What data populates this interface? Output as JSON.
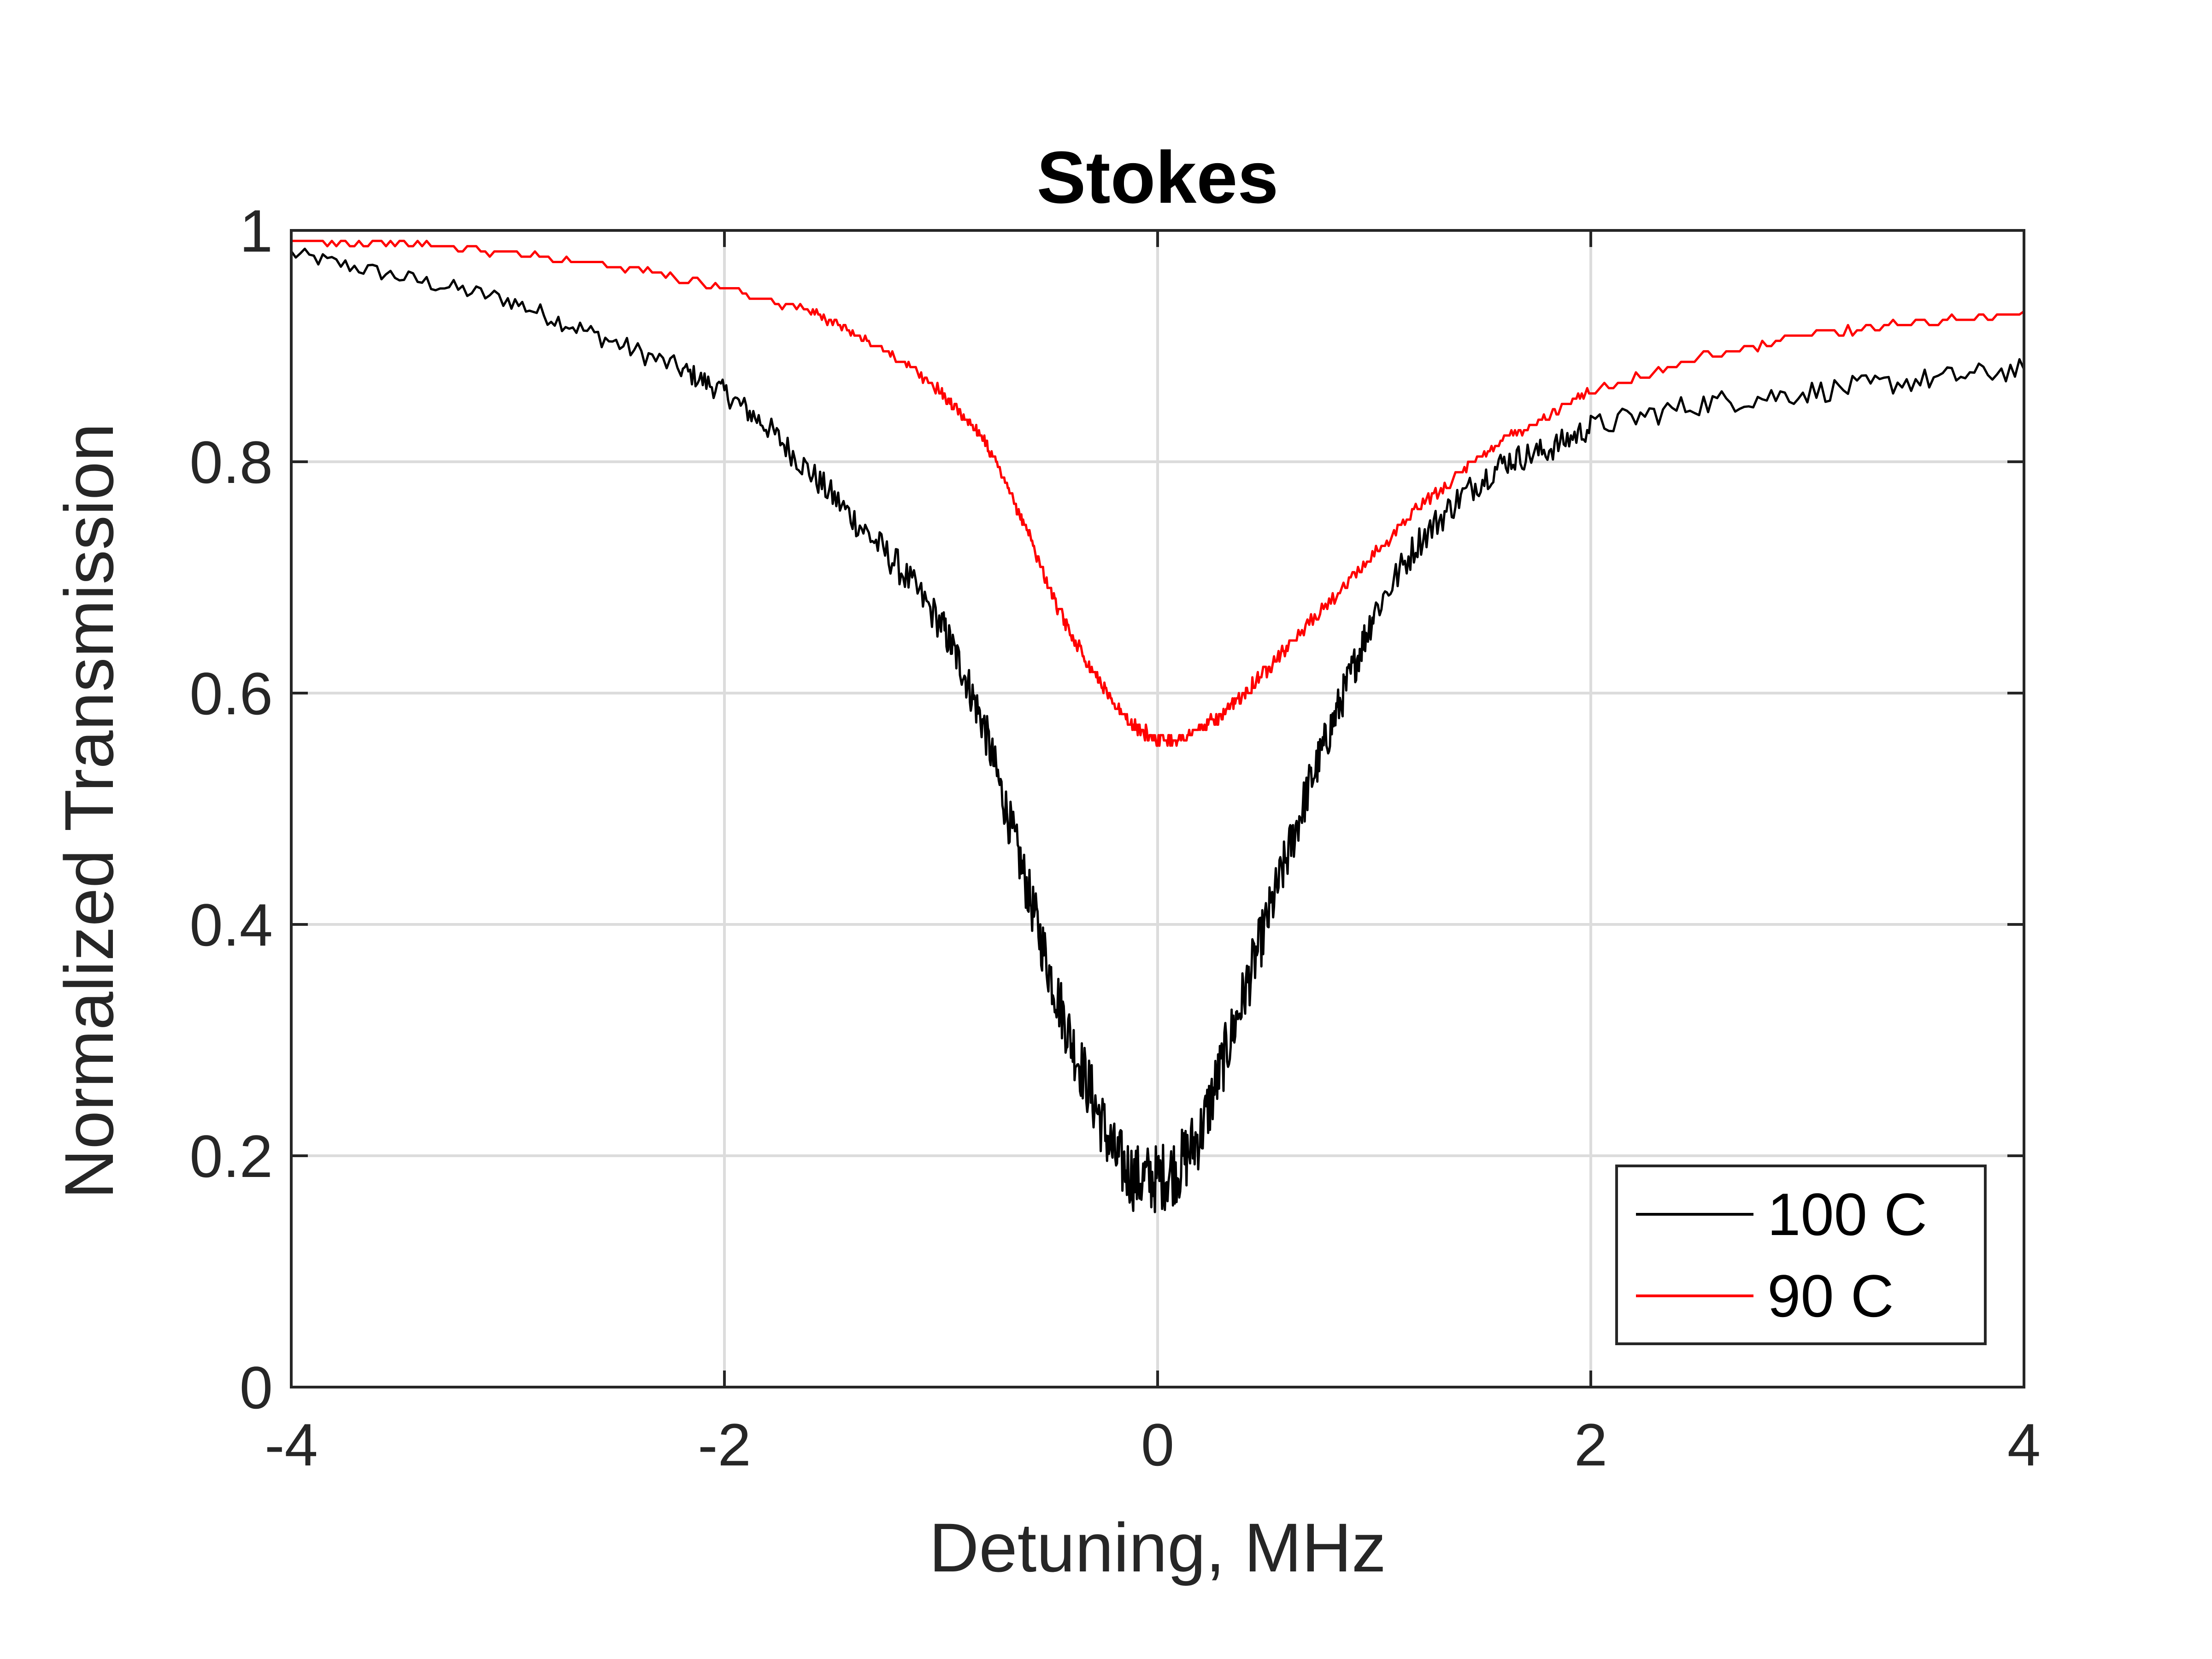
{
  "chart_data": {
    "type": "line",
    "title": "Stokes",
    "xlabel": "Detuning, MHz",
    "ylabel": "Normalized Transmission",
    "xlim": [
      -4,
      4
    ],
    "ylim": [
      0,
      1
    ],
    "xticks": [
      -4,
      -2,
      0,
      2,
      4
    ],
    "xtick_labels": [
      "-4",
      "-2",
      "0",
      "2",
      "4"
    ],
    "yticks": [
      0,
      0.2,
      0.4,
      0.6,
      0.8,
      1
    ],
    "ytick_labels": [
      "0",
      "0.2",
      "0.4",
      "0.6",
      "0.8",
      "1"
    ],
    "grid": true,
    "legend_position": "bottom-right",
    "series": [
      {
        "name": "100 C",
        "color": "#000000",
        "x": [
          -4.0,
          -3.5,
          -3.0,
          -2.6,
          -2.2,
          -2.0,
          -1.8,
          -1.6,
          -1.4,
          -1.2,
          -1.0,
          -0.9,
          -0.8,
          -0.7,
          -0.6,
          -0.5,
          -0.4,
          -0.3,
          -0.2,
          -0.1,
          0.0,
          0.1,
          0.2,
          0.3,
          0.4,
          0.5,
          0.6,
          0.7,
          0.8,
          0.9,
          1.0,
          1.2,
          1.4,
          1.6,
          1.8,
          2.0,
          2.5,
          3.0,
          3.5,
          4.0
        ],
        "y": [
          0.98,
          0.96,
          0.94,
          0.91,
          0.88,
          0.86,
          0.83,
          0.79,
          0.75,
          0.71,
          0.66,
          0.62,
          0.57,
          0.5,
          0.43,
          0.36,
          0.3,
          0.25,
          0.2,
          0.18,
          0.18,
          0.19,
          0.22,
          0.28,
          0.34,
          0.4,
          0.46,
          0.52,
          0.57,
          0.62,
          0.67,
          0.73,
          0.77,
          0.8,
          0.81,
          0.83,
          0.85,
          0.86,
          0.87,
          0.88
        ]
      },
      {
        "name": "90 C",
        "color": "#ff0000",
        "x": [
          -4.0,
          -3.5,
          -3.0,
          -2.5,
          -2.0,
          -1.6,
          -1.4,
          -1.2,
          -1.0,
          -0.9,
          -0.8,
          -0.7,
          -0.6,
          -0.5,
          -0.4,
          -0.3,
          -0.2,
          -0.1,
          0.0,
          0.1,
          0.2,
          0.3,
          0.4,
          0.5,
          0.6,
          0.8,
          1.0,
          1.2,
          1.4,
          1.6,
          1.8,
          2.0,
          2.5,
          3.0,
          3.5,
          4.0
        ],
        "y": [
          0.99,
          0.99,
          0.98,
          0.97,
          0.95,
          0.93,
          0.91,
          0.89,
          0.86,
          0.84,
          0.82,
          0.78,
          0.74,
          0.69,
          0.65,
          0.62,
          0.59,
          0.57,
          0.56,
          0.56,
          0.57,
          0.58,
          0.6,
          0.62,
          0.64,
          0.68,
          0.72,
          0.76,
          0.79,
          0.82,
          0.84,
          0.86,
          0.89,
          0.91,
          0.92,
          0.93
        ]
      }
    ]
  }
}
